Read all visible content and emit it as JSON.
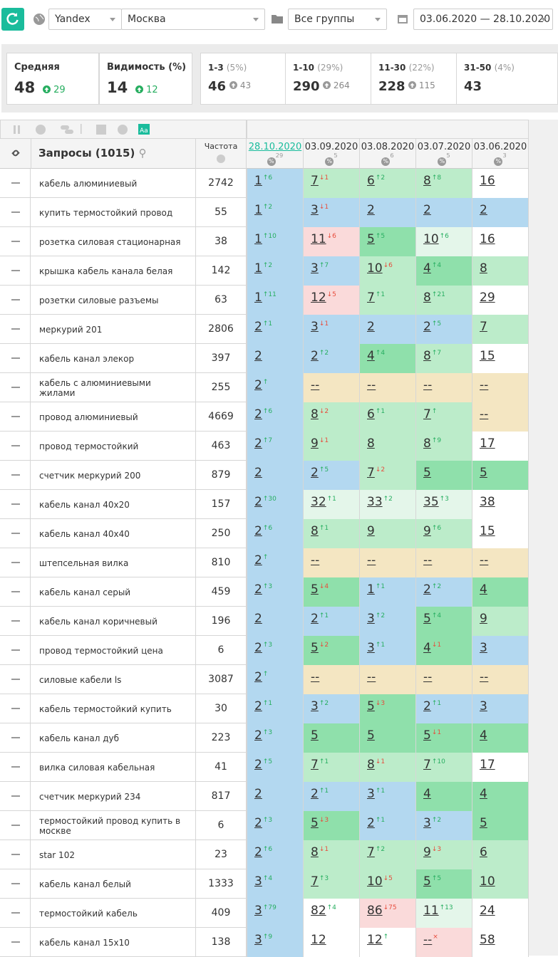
{
  "toolbar": {
    "engine": "Yandex",
    "region": "Москва",
    "group": "Все группы",
    "dates": "03.06.2020 — 28.10.2020"
  },
  "stats": {
    "cards": [
      {
        "label": "Средняя",
        "value": 48,
        "delta": 29
      },
      {
        "label": "Видимость (%)",
        "value": 14,
        "delta": 12
      }
    ],
    "ranges": [
      {
        "label": "1-3",
        "pct": "(5%)",
        "value": 46,
        "delta": 43
      },
      {
        "label": "1-10",
        "pct": "(29%)",
        "value": 290,
        "delta": 264
      },
      {
        "label": "11-30",
        "pct": "(22%)",
        "value": 228,
        "delta": 115
      },
      {
        "label": "31-50",
        "pct": "(4%)",
        "value": 43
      }
    ]
  },
  "table": {
    "query_header": "Запросы (1015)",
    "freq_header": "Частота",
    "palette": {
      "b": "#b3d8f0",
      "g": "#8fe0ab",
      "lg": "#bcecca",
      "m": "#e4f6ea",
      "w": "#ffffff",
      "p": "#fadada",
      "y": "#f4e6c2"
    },
    "dates": [
      {
        "date": "28.10.2020",
        "count": 29
      },
      {
        "date": "03.09.2020",
        "count": 5
      },
      {
        "date": "03.08.2020",
        "count": 6
      },
      {
        "date": "03.07.2020",
        "count": 5
      },
      {
        "date": "03.06.2020",
        "count": 3
      }
    ],
    "rows": [
      {
        "query": "кабель алюминиевый",
        "freq": 2742,
        "cells": [
          {
            "v": 1,
            "d": "↑6",
            "t": "up",
            "bg": "b"
          },
          {
            "v": 7,
            "d": "↓1",
            "t": "down",
            "bg": "lg"
          },
          {
            "v": 6,
            "d": "↑2",
            "t": "up",
            "bg": "lg"
          },
          {
            "v": 8,
            "d": "↑8",
            "t": "up",
            "bg": "lg"
          },
          {
            "v": 16,
            "bg": "w"
          }
        ]
      },
      {
        "query": "купить термостойкий провод",
        "freq": 55,
        "cells": [
          {
            "v": 1,
            "d": "↑2",
            "t": "up",
            "bg": "b"
          },
          {
            "v": 3,
            "d": "↓1",
            "t": "down",
            "bg": "b"
          },
          {
            "v": 2,
            "bg": "b"
          },
          {
            "v": 2,
            "bg": "b"
          },
          {
            "v": 2,
            "bg": "b"
          }
        ]
      },
      {
        "query": "розетка силовая стационарная",
        "freq": 38,
        "cells": [
          {
            "v": 1,
            "d": "↑10",
            "t": "up",
            "bg": "b"
          },
          {
            "v": 11,
            "d": "↓6",
            "t": "down",
            "bg": "p"
          },
          {
            "v": 5,
            "d": "↑5",
            "t": "up",
            "bg": "g"
          },
          {
            "v": 10,
            "d": "↑6",
            "t": "up",
            "bg": "m"
          },
          {
            "v": 16,
            "bg": "w"
          }
        ]
      },
      {
        "query": "крышка кабель канала белая",
        "freq": 142,
        "cells": [
          {
            "v": 1,
            "d": "↑2",
            "t": "up",
            "bg": "b"
          },
          {
            "v": 3,
            "d": "↑7",
            "t": "up",
            "bg": "b"
          },
          {
            "v": 10,
            "d": "↓6",
            "t": "down",
            "bg": "lg"
          },
          {
            "v": 4,
            "d": "↑4",
            "t": "up",
            "bg": "g"
          },
          {
            "v": 8,
            "bg": "lg"
          }
        ]
      },
      {
        "query": "розетки силовые разъемы",
        "freq": 63,
        "cells": [
          {
            "v": 1,
            "d": "↑11",
            "t": "up",
            "bg": "b"
          },
          {
            "v": 12,
            "d": "↓5",
            "t": "down",
            "bg": "p"
          },
          {
            "v": 7,
            "d": "↑1",
            "t": "up",
            "bg": "lg"
          },
          {
            "v": 8,
            "d": "↑21",
            "t": "up",
            "bg": "lg"
          },
          {
            "v": 29,
            "bg": "w"
          }
        ]
      },
      {
        "query": "меркурий 201",
        "freq": 2806,
        "cells": [
          {
            "v": 2,
            "d": "↑1",
            "t": "up",
            "bg": "b"
          },
          {
            "v": 3,
            "d": "↓1",
            "t": "down",
            "bg": "b"
          },
          {
            "v": 2,
            "bg": "b"
          },
          {
            "v": 2,
            "d": "↑5",
            "t": "up",
            "bg": "b"
          },
          {
            "v": 7,
            "bg": "lg"
          }
        ]
      },
      {
        "query": "кабель канал элекор",
        "freq": 397,
        "cells": [
          {
            "v": 2,
            "bg": "b"
          },
          {
            "v": 2,
            "d": "↑2",
            "t": "up",
            "bg": "b"
          },
          {
            "v": 4,
            "d": "↑4",
            "t": "up",
            "bg": "g"
          },
          {
            "v": 8,
            "d": "↑7",
            "t": "up",
            "bg": "lg"
          },
          {
            "v": 15,
            "bg": "w"
          }
        ]
      },
      {
        "query": "кабель с алюминиевыми жилами",
        "freq": 255,
        "cells": [
          {
            "v": 2,
            "d": "↑",
            "t": "up",
            "bg": "b"
          },
          {
            "v": "--",
            "bg": "y"
          },
          {
            "v": "--",
            "bg": "y"
          },
          {
            "v": "--",
            "bg": "y"
          },
          {
            "v": "--",
            "bg": "y"
          }
        ]
      },
      {
        "query": "провод алюминиевый",
        "freq": 4669,
        "cells": [
          {
            "v": 2,
            "d": "↑6",
            "t": "up",
            "bg": "b"
          },
          {
            "v": 8,
            "d": "↓2",
            "t": "down",
            "bg": "lg"
          },
          {
            "v": 6,
            "d": "↑1",
            "t": "up",
            "bg": "lg"
          },
          {
            "v": 7,
            "d": "↑",
            "t": "up",
            "bg": "lg"
          },
          {
            "v": "--",
            "bg": "y"
          }
        ]
      },
      {
        "query": "провод термостойкий",
        "freq": 463,
        "cells": [
          {
            "v": 2,
            "d": "↑7",
            "t": "up",
            "bg": "b"
          },
          {
            "v": 9,
            "d": "↓1",
            "t": "down",
            "bg": "lg"
          },
          {
            "v": 8,
            "bg": "lg"
          },
          {
            "v": 8,
            "d": "↑9",
            "t": "up",
            "bg": "lg"
          },
          {
            "v": 17,
            "bg": "w"
          }
        ]
      },
      {
        "query": "счетчик меркурий 200",
        "freq": 879,
        "cells": [
          {
            "v": 2,
            "bg": "b"
          },
          {
            "v": 2,
            "d": "↑5",
            "t": "up",
            "bg": "b"
          },
          {
            "v": 7,
            "d": "↓2",
            "t": "down",
            "bg": "lg"
          },
          {
            "v": 5,
            "bg": "g"
          },
          {
            "v": 5,
            "bg": "g"
          }
        ]
      },
      {
        "query": "кабель канал 40х20",
        "freq": 157,
        "cells": [
          {
            "v": 2,
            "d": "↑30",
            "t": "up",
            "bg": "b"
          },
          {
            "v": 32,
            "d": "↑1",
            "t": "up",
            "bg": "m"
          },
          {
            "v": 33,
            "d": "↑2",
            "t": "up",
            "bg": "m"
          },
          {
            "v": 35,
            "d": "↑3",
            "t": "up",
            "bg": "m"
          },
          {
            "v": 38,
            "bg": "w"
          }
        ]
      },
      {
        "query": "кабель канал 40х40",
        "freq": 250,
        "cells": [
          {
            "v": 2,
            "d": "↑6",
            "t": "up",
            "bg": "b"
          },
          {
            "v": 8,
            "d": "↑1",
            "t": "up",
            "bg": "lg"
          },
          {
            "v": 9,
            "bg": "lg"
          },
          {
            "v": 9,
            "d": "↑6",
            "t": "up",
            "bg": "lg"
          },
          {
            "v": 15,
            "bg": "w"
          }
        ]
      },
      {
        "query": "штепсельная вилка",
        "freq": 810,
        "cells": [
          {
            "v": 2,
            "d": "↑",
            "t": "up",
            "bg": "b"
          },
          {
            "v": "--",
            "bg": "y"
          },
          {
            "v": "--",
            "bg": "y"
          },
          {
            "v": "--",
            "bg": "y"
          },
          {
            "v": "--",
            "bg": "y"
          }
        ]
      },
      {
        "query": "кабель канал серый",
        "freq": 459,
        "cells": [
          {
            "v": 2,
            "d": "↑3",
            "t": "up",
            "bg": "b"
          },
          {
            "v": 5,
            "d": "↓4",
            "t": "down",
            "bg": "g"
          },
          {
            "v": 1,
            "d": "↑1",
            "t": "up",
            "bg": "b"
          },
          {
            "v": 2,
            "d": "↑2",
            "t": "up",
            "bg": "b"
          },
          {
            "v": 4,
            "bg": "g"
          }
        ]
      },
      {
        "query": "кабель канал коричневый",
        "freq": 196,
        "cells": [
          {
            "v": 2,
            "bg": "b"
          },
          {
            "v": 2,
            "d": "↑1",
            "t": "up",
            "bg": "b"
          },
          {
            "v": 3,
            "d": "↑2",
            "t": "up",
            "bg": "b"
          },
          {
            "v": 5,
            "d": "↑4",
            "t": "up",
            "bg": "g"
          },
          {
            "v": 9,
            "bg": "lg"
          }
        ]
      },
      {
        "query": "провод термостойкий цена",
        "freq": 6,
        "cells": [
          {
            "v": 2,
            "d": "↑3",
            "t": "up",
            "bg": "b"
          },
          {
            "v": 5,
            "d": "↓2",
            "t": "down",
            "bg": "g"
          },
          {
            "v": 3,
            "d": "↑1",
            "t": "up",
            "bg": "b"
          },
          {
            "v": 4,
            "d": "↓1",
            "t": "down",
            "bg": "g"
          },
          {
            "v": 3,
            "bg": "b"
          }
        ]
      },
      {
        "query": "силовые кабели ls",
        "freq": 3087,
        "cells": [
          {
            "v": 2,
            "d": "↑",
            "t": "up",
            "bg": "b"
          },
          {
            "v": "--",
            "bg": "y"
          },
          {
            "v": "--",
            "bg": "y"
          },
          {
            "v": "--",
            "bg": "y"
          },
          {
            "v": "--",
            "bg": "y"
          }
        ]
      },
      {
        "query": "кабель термостойкий купить",
        "freq": 30,
        "cells": [
          {
            "v": 2,
            "d": "↑1",
            "t": "up",
            "bg": "b"
          },
          {
            "v": 3,
            "d": "↑2",
            "t": "up",
            "bg": "b"
          },
          {
            "v": 5,
            "d": "↓3",
            "t": "down",
            "bg": "g"
          },
          {
            "v": 2,
            "d": "↑1",
            "t": "up",
            "bg": "b"
          },
          {
            "v": 3,
            "bg": "b"
          }
        ]
      },
      {
        "query": "кабель канал дуб",
        "freq": 223,
        "cells": [
          {
            "v": 2,
            "d": "↑3",
            "t": "up",
            "bg": "b"
          },
          {
            "v": 5,
            "bg": "g"
          },
          {
            "v": 5,
            "bg": "g"
          },
          {
            "v": 5,
            "d": "↓1",
            "t": "down",
            "bg": "g"
          },
          {
            "v": 4,
            "bg": "g"
          }
        ]
      },
      {
        "query": "вилка силовая кабельная",
        "freq": 41,
        "cells": [
          {
            "v": 2,
            "d": "↑5",
            "t": "up",
            "bg": "b"
          },
          {
            "v": 7,
            "d": "↑1",
            "t": "up",
            "bg": "lg"
          },
          {
            "v": 8,
            "d": "↓1",
            "t": "down",
            "bg": "lg"
          },
          {
            "v": 7,
            "d": "↑10",
            "t": "up",
            "bg": "lg"
          },
          {
            "v": 17,
            "bg": "w"
          }
        ]
      },
      {
        "query": "счетчик меркурий 234",
        "freq": 817,
        "cells": [
          {
            "v": 2,
            "bg": "b"
          },
          {
            "v": 2,
            "d": "↑1",
            "t": "up",
            "bg": "b"
          },
          {
            "v": 3,
            "d": "↑1",
            "t": "up",
            "bg": "b"
          },
          {
            "v": 4,
            "bg": "g"
          },
          {
            "v": 4,
            "bg": "g"
          }
        ]
      },
      {
        "query": "термостойкий провод купить в москве",
        "freq": 6,
        "cells": [
          {
            "v": 2,
            "d": "↑3",
            "t": "up",
            "bg": "b"
          },
          {
            "v": 5,
            "d": "↓3",
            "t": "down",
            "bg": "g"
          },
          {
            "v": 2,
            "d": "↑1",
            "t": "up",
            "bg": "b"
          },
          {
            "v": 3,
            "d": "↑2",
            "t": "up",
            "bg": "b"
          },
          {
            "v": 5,
            "bg": "g"
          }
        ]
      },
      {
        "query": "star 102",
        "freq": 23,
        "cells": [
          {
            "v": 2,
            "d": "↑6",
            "t": "up",
            "bg": "b"
          },
          {
            "v": 8,
            "d": "↓1",
            "t": "down",
            "bg": "lg"
          },
          {
            "v": 7,
            "d": "↑2",
            "t": "up",
            "bg": "lg"
          },
          {
            "v": 9,
            "d": "↓3",
            "t": "down",
            "bg": "lg"
          },
          {
            "v": 6,
            "bg": "lg"
          }
        ]
      },
      {
        "query": "кабель канал белый",
        "freq": 1333,
        "cells": [
          {
            "v": 3,
            "d": "↑4",
            "t": "up",
            "bg": "b"
          },
          {
            "v": 7,
            "d": "↑3",
            "t": "up",
            "bg": "lg"
          },
          {
            "v": 10,
            "d": "↓5",
            "t": "down",
            "bg": "lg"
          },
          {
            "v": 5,
            "d": "↑5",
            "t": "up",
            "bg": "g"
          },
          {
            "v": 10,
            "bg": "lg"
          }
        ]
      },
      {
        "query": "термостойкий кабель",
        "freq": 409,
        "cells": [
          {
            "v": 3,
            "d": "↑79",
            "t": "up",
            "bg": "b"
          },
          {
            "v": 82,
            "d": "↑4",
            "t": "up",
            "bg": "w"
          },
          {
            "v": 86,
            "d": "↓75",
            "t": "down",
            "bg": "p"
          },
          {
            "v": 11,
            "d": "↑13",
            "t": "up",
            "bg": "m"
          },
          {
            "v": 24,
            "bg": "w"
          }
        ]
      },
      {
        "query": "кабель канал 15х10",
        "freq": 138,
        "cells": [
          {
            "v": 3,
            "d": "↑9",
            "t": "up",
            "bg": "b"
          },
          {
            "v": 12,
            "bg": "w"
          },
          {
            "v": 12,
            "d": "↑",
            "t": "up",
            "bg": "w"
          },
          {
            "v": "--",
            "d": "×",
            "t": "down",
            "bg": "p"
          },
          {
            "v": 58,
            "bg": "w"
          }
        ]
      }
    ]
  }
}
